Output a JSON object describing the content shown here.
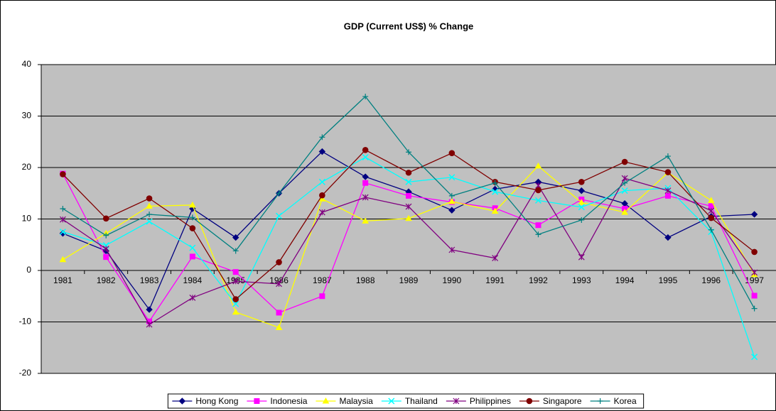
{
  "chart_data": {
    "type": "line",
    "title": "GDP (Current US$) % Change",
    "categories": [
      "1981",
      "1982",
      "1983",
      "1984",
      "1985",
      "1986",
      "1987",
      "1988",
      "1989",
      "1990",
      "1991",
      "1992",
      "1993",
      "1994",
      "1995",
      "1996",
      "1997"
    ],
    "series": [
      {
        "name": "Hong Kong",
        "color": "#000080",
        "marker": "diamond",
        "values": [
          7.2,
          3.8,
          -7.6,
          12,
          6.4,
          15,
          23.1,
          18.2,
          15.3,
          11.7,
          15.8,
          17.2,
          15.5,
          13,
          6.4,
          10.5,
          10.9
        ]
      },
      {
        "name": "Indonesia",
        "color": "#FF00FF",
        "marker": "square",
        "values": [
          18.8,
          2.6,
          -9.9,
          2.7,
          -0.3,
          -8.2,
          -5,
          17,
          14.5,
          13.3,
          12.1,
          8.8,
          13.8,
          12,
          14.5,
          12.5,
          -4.9
        ]
      },
      {
        "name": "Malaysia",
        "color": "#FFFF00",
        "marker": "triangle",
        "values": [
          2.1,
          7.2,
          12.5,
          12.7,
          -8.1,
          -11.1,
          13.9,
          9.6,
          10.1,
          13.4,
          11.5,
          20.3,
          13.2,
          11.3,
          19,
          13.6,
          -0.8
        ]
      },
      {
        "name": "Thailand",
        "color": "#00FFFF",
        "marker": "x",
        "values": [
          7.5,
          4.9,
          9.5,
          4.4,
          -6.5,
          10.6,
          17.2,
          22,
          17.2,
          18.1,
          15.3,
          13.6,
          12.3,
          15.5,
          16,
          7.5,
          -16.8
        ]
      },
      {
        "name": "Philippines",
        "color": "#800080",
        "marker": "star",
        "values": [
          9.9,
          4.2,
          -10.5,
          -5.3,
          -2.1,
          -2.6,
          11.3,
          14.2,
          12.4,
          4,
          2.4,
          16.5,
          2.6,
          17.9,
          15.5,
          11.6,
          -0.4
        ]
      },
      {
        "name": "Singapore",
        "color": "#800000",
        "marker": "circle",
        "values": [
          18.7,
          10.1,
          14,
          8.2,
          -5.6,
          1.6,
          14.6,
          23.4,
          19,
          22.8,
          17.2,
          15.6,
          17.2,
          21.1,
          19.1,
          10.2,
          3.6
        ]
      },
      {
        "name": "Korea",
        "color": "#008080",
        "marker": "plus",
        "values": [
          12,
          6.8,
          10.9,
          10.3,
          3.8,
          15,
          25.9,
          33.8,
          23,
          14.5,
          17,
          7,
          9.8,
          17,
          22.2,
          7.9,
          -7.4
        ]
      }
    ],
    "ylim": [
      -20,
      40
    ],
    "yticks": [
      -20,
      -10,
      0,
      10,
      20,
      30,
      40
    ],
    "grid": true,
    "legend": "bottom",
    "plot_color": "#C0C0C0"
  }
}
